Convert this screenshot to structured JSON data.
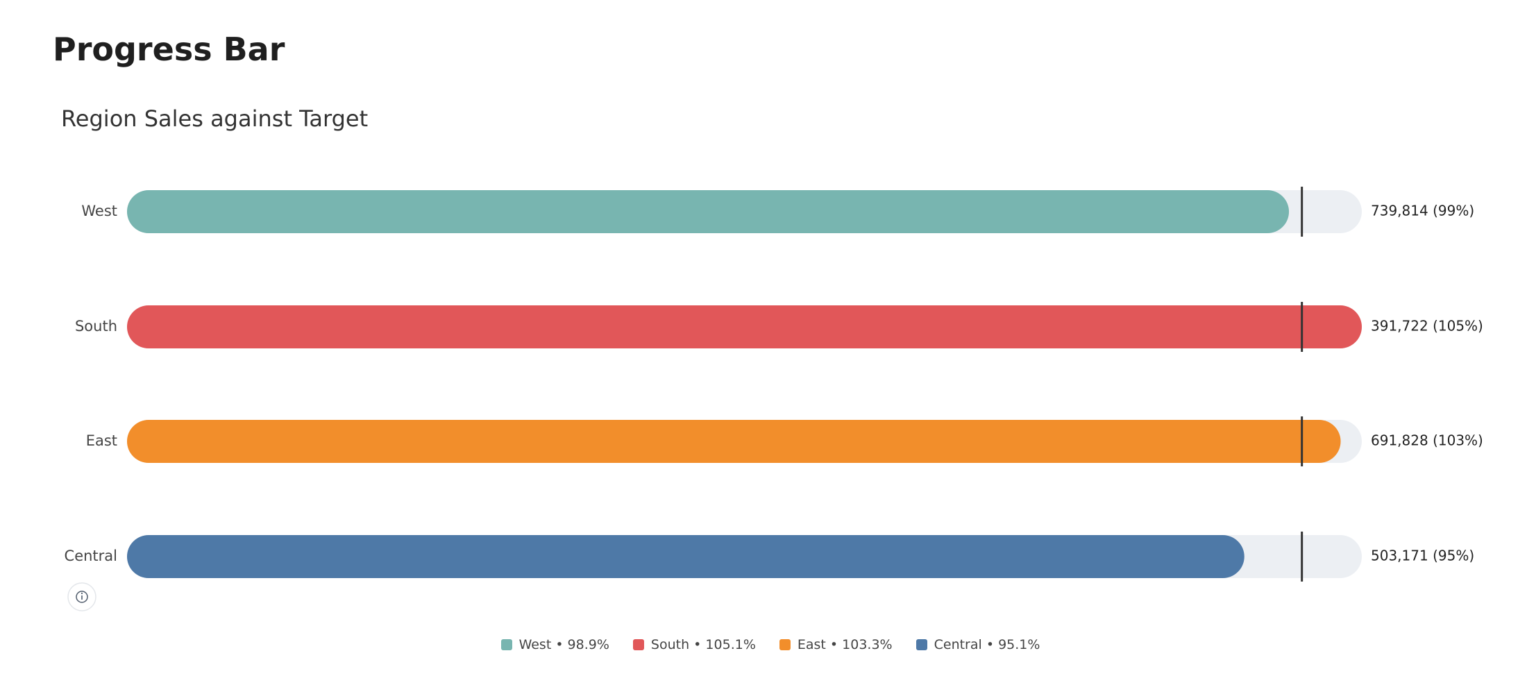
{
  "header": {
    "title": "Progress Bar"
  },
  "chart_data": {
    "type": "progress",
    "title": "Region Sales against Target",
    "categories": [
      "West",
      "South",
      "East",
      "Central"
    ],
    "values": [
      98.9,
      105.1,
      103.3,
      95.1
    ],
    "colors": [
      "#78b5b0",
      "#e15759",
      "#f28e2b",
      "#4e79a7"
    ],
    "sales": [
      739814,
      391722,
      691828,
      503171
    ],
    "sales_labels": [
      "739,814 (99%)",
      "391,722 (105%)",
      "691,828 (103%)",
      "503,171 (95%)"
    ],
    "legend_labels": [
      "West • 98.9%",
      "South • 105.1%",
      "East • 103.3%",
      "Central • 95.1%"
    ],
    "target": 100,
    "xlim": [
      0,
      105.1
    ]
  }
}
